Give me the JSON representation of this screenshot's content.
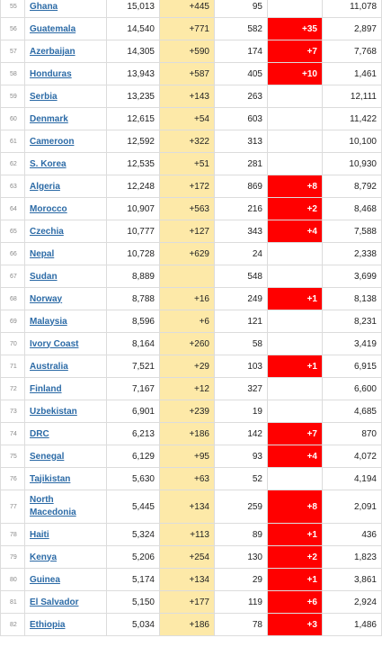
{
  "table": {
    "rows": [
      {
        "rank": "55",
        "country": "Ghana",
        "total": "15,013",
        "new_cases": "+445",
        "deaths": "95",
        "new_deaths": "",
        "active": "11,078"
      },
      {
        "rank": "56",
        "country": "Guatemala",
        "total": "14,540",
        "new_cases": "+771",
        "deaths": "582",
        "new_deaths": "+35",
        "active": "2,897"
      },
      {
        "rank": "57",
        "country": "Azerbaijan",
        "total": "14,305",
        "new_cases": "+590",
        "deaths": "174",
        "new_deaths": "+7",
        "active": "7,768"
      },
      {
        "rank": "58",
        "country": "Honduras",
        "total": "13,943",
        "new_cases": "+587",
        "deaths": "405",
        "new_deaths": "+10",
        "active": "1,461"
      },
      {
        "rank": "59",
        "country": "Serbia",
        "total": "13,235",
        "new_cases": "+143",
        "deaths": "263",
        "new_deaths": "",
        "active": "12,111"
      },
      {
        "rank": "60",
        "country": "Denmark",
        "total": "12,615",
        "new_cases": "+54",
        "deaths": "603",
        "new_deaths": "",
        "active": "11,422"
      },
      {
        "rank": "61",
        "country": "Cameroon",
        "total": "12,592",
        "new_cases": "+322",
        "deaths": "313",
        "new_deaths": "",
        "active": "10,100"
      },
      {
        "rank": "62",
        "country": "S. Korea",
        "total": "12,535",
        "new_cases": "+51",
        "deaths": "281",
        "new_deaths": "",
        "active": "10,930"
      },
      {
        "rank": "63",
        "country": "Algeria",
        "total": "12,248",
        "new_cases": "+172",
        "deaths": "869",
        "new_deaths": "+8",
        "active": "8,792"
      },
      {
        "rank": "64",
        "country": "Morocco",
        "total": "10,907",
        "new_cases": "+563",
        "deaths": "216",
        "new_deaths": "+2",
        "active": "8,468"
      },
      {
        "rank": "65",
        "country": "Czechia",
        "total": "10,777",
        "new_cases": "+127",
        "deaths": "343",
        "new_deaths": "+4",
        "active": "7,588"
      },
      {
        "rank": "66",
        "country": "Nepal",
        "total": "10,728",
        "new_cases": "+629",
        "deaths": "24",
        "new_deaths": "",
        "active": "2,338"
      },
      {
        "rank": "67",
        "country": "Sudan",
        "total": "8,889",
        "new_cases": "",
        "deaths": "548",
        "new_deaths": "",
        "active": "3,699"
      },
      {
        "rank": "68",
        "country": "Norway",
        "total": "8,788",
        "new_cases": "+16",
        "deaths": "249",
        "new_deaths": "+1",
        "active": "8,138"
      },
      {
        "rank": "69",
        "country": "Malaysia",
        "total": "8,596",
        "new_cases": "+6",
        "deaths": "121",
        "new_deaths": "",
        "active": "8,231"
      },
      {
        "rank": "70",
        "country": "Ivory Coast",
        "total": "8,164",
        "new_cases": "+260",
        "deaths": "58",
        "new_deaths": "",
        "active": "3,419"
      },
      {
        "rank": "71",
        "country": "Australia",
        "total": "7,521",
        "new_cases": "+29",
        "deaths": "103",
        "new_deaths": "+1",
        "active": "6,915"
      },
      {
        "rank": "72",
        "country": "Finland",
        "total": "7,167",
        "new_cases": "+12",
        "deaths": "327",
        "new_deaths": "",
        "active": "6,600"
      },
      {
        "rank": "73",
        "country": "Uzbekistan",
        "total": "6,901",
        "new_cases": "+239",
        "deaths": "19",
        "new_deaths": "",
        "active": "4,685"
      },
      {
        "rank": "74",
        "country": "DRC",
        "total": "6,213",
        "new_cases": "+186",
        "deaths": "142",
        "new_deaths": "+7",
        "active": "870"
      },
      {
        "rank": "75",
        "country": "Senegal",
        "total": "6,129",
        "new_cases": "+95",
        "deaths": "93",
        "new_deaths": "+4",
        "active": "4,072"
      },
      {
        "rank": "76",
        "country": "Tajikistan",
        "total": "5,630",
        "new_cases": "+63",
        "deaths": "52",
        "new_deaths": "",
        "active": "4,194"
      },
      {
        "rank": "77",
        "country": "North Macedonia",
        "total": "5,445",
        "new_cases": "+134",
        "deaths": "259",
        "new_deaths": "+8",
        "active": "2,091",
        "tall": true
      },
      {
        "rank": "78",
        "country": "Haiti",
        "total": "5,324",
        "new_cases": "+113",
        "deaths": "89",
        "new_deaths": "+1",
        "active": "436"
      },
      {
        "rank": "79",
        "country": "Kenya",
        "total": "5,206",
        "new_cases": "+254",
        "deaths": "130",
        "new_deaths": "+2",
        "active": "1,823"
      },
      {
        "rank": "80",
        "country": "Guinea",
        "total": "5,174",
        "new_cases": "+134",
        "deaths": "29",
        "new_deaths": "+1",
        "active": "3,861"
      },
      {
        "rank": "81",
        "country": "El Salvador",
        "total": "5,150",
        "new_cases": "+177",
        "deaths": "119",
        "new_deaths": "+6",
        "active": "2,924"
      },
      {
        "rank": "82",
        "country": "Ethiopia",
        "total": "5,034",
        "new_cases": "+186",
        "deaths": "78",
        "new_deaths": "+3",
        "active": "1,486"
      }
    ]
  },
  "colors": {
    "new_cases_bg": "#fde9a8",
    "new_deaths_bg": "#ff0000",
    "link": "#2b6aa6"
  }
}
